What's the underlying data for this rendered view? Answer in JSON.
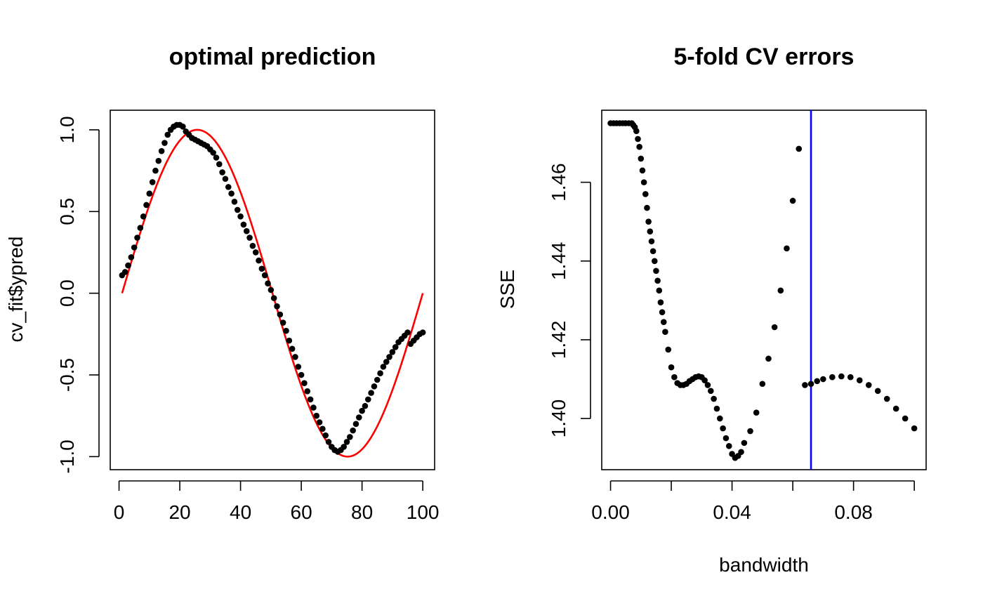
{
  "chart_data": [
    {
      "type": "scatter",
      "title": "optimal prediction",
      "xlabel": "",
      "ylabel": "cv_fit$ypred",
      "xlim": [
        -2.9,
        103.9
      ],
      "ylim": [
        -1.08,
        1.12
      ],
      "xticks": [
        0,
        20,
        40,
        60,
        80,
        100
      ],
      "xtick_labels": [
        "0",
        "20",
        "40",
        "60",
        "80",
        "100"
      ],
      "yticks": [
        -1,
        -0.5,
        0,
        0.5,
        1
      ],
      "ytick_labels": [
        "-1.0",
        "-0.5",
        "0.0",
        "0.5",
        "1.0"
      ],
      "grid": false,
      "series": [
        {
          "kind": "points",
          "color": "#000000",
          "x": [
            1,
            2,
            3,
            4,
            5,
            6,
            7,
            8,
            9,
            10,
            11,
            12,
            13,
            14,
            15,
            16,
            17,
            18,
            19,
            20,
            21,
            22,
            23,
            24,
            25,
            26,
            27,
            28,
            29,
            30,
            31,
            32,
            33,
            34,
            35,
            36,
            37,
            38,
            39,
            40,
            41,
            42,
            43,
            44,
            45,
            46,
            47,
            48,
            49,
            50,
            51,
            52,
            53,
            54,
            55,
            56,
            57,
            58,
            59,
            60,
            61,
            62,
            63,
            64,
            65,
            66,
            67,
            68,
            69,
            70,
            71,
            72,
            73,
            74,
            75,
            76,
            77,
            78,
            79,
            80,
            81,
            82,
            83,
            84,
            85,
            86,
            87,
            88,
            89,
            90,
            91,
            92,
            93,
            94,
            95,
            96,
            97,
            98,
            99,
            100
          ],
          "y": [
            0.11,
            0.13,
            0.17,
            0.22,
            0.28,
            0.34,
            0.4,
            0.47,
            0.54,
            0.61,
            0.68,
            0.75,
            0.81,
            0.87,
            0.92,
            0.97,
            1.0,
            1.02,
            1.03,
            1.03,
            1.02,
            0.99,
            0.97,
            0.95,
            0.94,
            0.93,
            0.92,
            0.91,
            0.9,
            0.88,
            0.86,
            0.83,
            0.79,
            0.74,
            0.7,
            0.65,
            0.61,
            0.56,
            0.51,
            0.47,
            0.42,
            0.38,
            0.34,
            0.29,
            0.25,
            0.2,
            0.15,
            0.11,
            0.06,
            0.02,
            -0.03,
            -0.08,
            -0.13,
            -0.18,
            -0.23,
            -0.29,
            -0.34,
            -0.39,
            -0.45,
            -0.5,
            -0.55,
            -0.6,
            -0.65,
            -0.7,
            -0.75,
            -0.79,
            -0.83,
            -0.87,
            -0.91,
            -0.94,
            -0.96,
            -0.97,
            -0.96,
            -0.94,
            -0.91,
            -0.88,
            -0.84,
            -0.8,
            -0.76,
            -0.72,
            -0.69,
            -0.65,
            -0.61,
            -0.57,
            -0.53,
            -0.49,
            -0.45,
            -0.42,
            -0.39,
            -0.36,
            -0.33,
            -0.3,
            -0.28,
            -0.26,
            -0.24,
            -0.31,
            -0.29,
            -0.27,
            -0.25,
            -0.24
          ]
        },
        {
          "kind": "line",
          "color": "#ff0000",
          "function": "sin(2*pi*(x-1)/99)",
          "x_range": [
            1,
            100
          ]
        }
      ]
    },
    {
      "type": "scatter",
      "title": "5-fold CV errors",
      "xlabel": "bandwidth",
      "ylabel": "SSE",
      "xlim": [
        -0.0029,
        0.1039
      ],
      "ylim": [
        1.387,
        1.4783
      ],
      "xticks": [
        0,
        0.02,
        0.04,
        0.06,
        0.08,
        0.1
      ],
      "xtick_labels": [
        "0.00",
        "",
        "0.04",
        "",
        "0.08",
        ""
      ],
      "yticks": [
        1.4,
        1.42,
        1.44,
        1.46
      ],
      "ytick_labels": [
        "1.40",
        "1.42",
        "1.44",
        "1.46"
      ],
      "grid": false,
      "vline": {
        "x": 0.066,
        "color": "#0000ff"
      },
      "series": [
        {
          "kind": "points",
          "color": "#000000",
          "x": [
            0.0,
            0.001,
            0.002,
            0.003,
            0.004,
            0.005,
            0.006,
            0.007,
            0.0075,
            0.008,
            0.0085,
            0.009,
            0.0095,
            0.01,
            0.0105,
            0.011,
            0.0115,
            0.012,
            0.0125,
            0.013,
            0.0135,
            0.014,
            0.0145,
            0.015,
            0.0155,
            0.016,
            0.0165,
            0.017,
            0.0175,
            0.018,
            0.019,
            0.02,
            0.021,
            0.022,
            0.023,
            0.024,
            0.025,
            0.026,
            0.027,
            0.028,
            0.029,
            0.03,
            0.031,
            0.032,
            0.033,
            0.034,
            0.035,
            0.036,
            0.037,
            0.038,
            0.039,
            0.04,
            0.041,
            0.042,
            0.043,
            0.044,
            0.046,
            0.048,
            0.05,
            0.052,
            0.054,
            0.056,
            0.058,
            0.06,
            0.062,
            0.064,
            0.066,
            0.068,
            0.07,
            0.073,
            0.076,
            0.079,
            0.082,
            0.085,
            0.088,
            0.091,
            0.094,
            0.097,
            0.1
          ],
          "y": [
            1.475,
            1.475,
            1.475,
            1.475,
            1.475,
            1.475,
            1.475,
            1.475,
            1.4745,
            1.474,
            1.473,
            1.471,
            1.469,
            1.466,
            1.463,
            1.46,
            1.457,
            1.4535,
            1.45,
            1.4475,
            1.445,
            1.4425,
            1.44,
            1.4375,
            1.435,
            1.4325,
            1.4295,
            1.427,
            1.4245,
            1.422,
            1.4175,
            1.413,
            1.4105,
            1.409,
            1.4085,
            1.4085,
            1.4088,
            1.4095,
            1.41,
            1.4105,
            1.4107,
            1.4105,
            1.4097,
            1.4085,
            1.407,
            1.405,
            1.4025,
            1.4,
            1.3975,
            1.395,
            1.393,
            1.391,
            1.39,
            1.3905,
            1.3915,
            1.3938,
            1.3968,
            1.4015,
            1.4088,
            1.4152,
            1.4232,
            1.4325,
            1.4432,
            1.4553,
            1.4685,
            1.4085,
            1.4088,
            1.4095,
            1.41,
            1.4105,
            1.4107,
            1.4105,
            1.4097,
            1.4085,
            1.407,
            1.405,
            1.4025,
            1.4,
            1.3975
          ]
        }
      ]
    }
  ]
}
